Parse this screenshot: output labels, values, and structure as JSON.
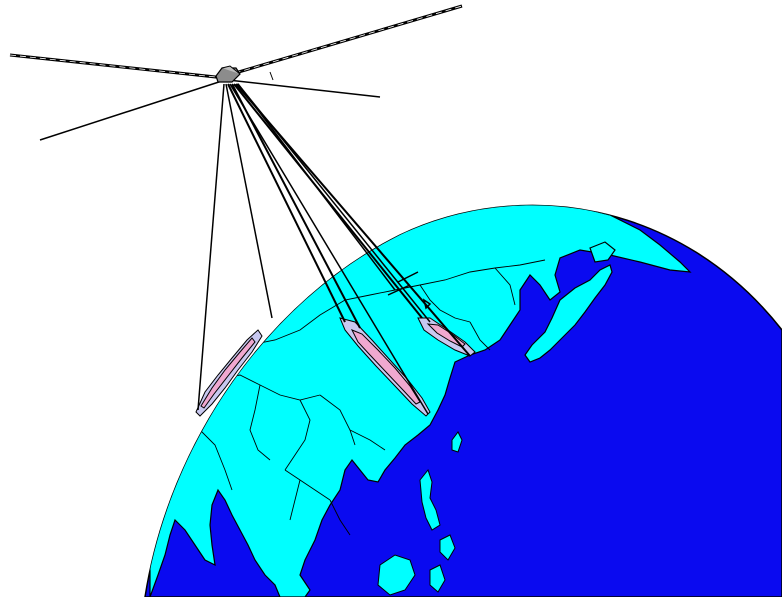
{
  "colors": {
    "background": "#ffffff",
    "ocean": "#0a0af0",
    "land": "#00ffff",
    "outline": "#000000",
    "footprint_outer": "#c8c8f0",
    "footprint_inner": "#f0a8d0",
    "satellite_body": "#8c8c8c"
  },
  "icons": {
    "satellite": "satellite-icon",
    "earth": "globe-icon"
  },
  "beams": [
    {
      "name": "beam-west-india"
    },
    {
      "name": "beam-central-china"
    },
    {
      "name": "beam-korea"
    }
  ]
}
